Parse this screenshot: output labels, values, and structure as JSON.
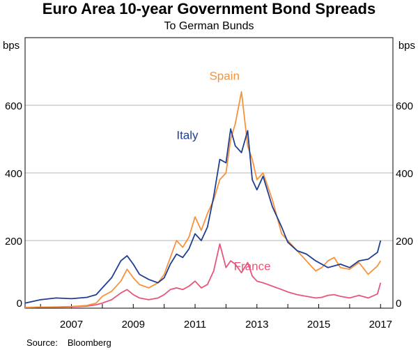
{
  "header": {
    "title": "Euro Area 10-year Government Bond Spreads",
    "subtitle": "To German Bunds"
  },
  "footer": {
    "source_label": "Source:",
    "source_value": "Bloomberg"
  },
  "chart_data": {
    "type": "line",
    "title": "Euro Area 10-year Government Bond Spreads",
    "subtitle": "To German Bunds",
    "xlabel": "",
    "ylabel_left": "bps",
    "ylabel_right": "bps",
    "xlim": [
      2005.5,
      2017.4
    ],
    "ylim": [
      0,
      800
    ],
    "x_ticks": [
      2007,
      2009,
      2011,
      2013,
      2015,
      2017
    ],
    "y_ticks": [
      0,
      200,
      400,
      600
    ],
    "grid": "horizontal",
    "colors": {
      "Spain": "#f7923a",
      "Italy": "#1f3e93",
      "France": "#e8557a"
    },
    "series": [
      {
        "name": "Spain",
        "x": [
          2005.5,
          2006.0,
          2006.5,
          2007.0,
          2007.5,
          2007.8,
          2008.0,
          2008.3,
          2008.6,
          2008.8,
          2009.0,
          2009.2,
          2009.5,
          2009.8,
          2010.0,
          2010.2,
          2010.4,
          2010.6,
          2010.8,
          2011.0,
          2011.2,
          2011.4,
          2011.6,
          2011.8,
          2012.0,
          2012.15,
          2012.3,
          2012.5,
          2012.7,
          2012.85,
          2013.0,
          2013.2,
          2013.5,
          2013.8,
          2014.0,
          2014.3,
          2014.6,
          2014.9,
          2015.1,
          2015.3,
          2015.5,
          2015.7,
          2016.0,
          2016.3,
          2016.6,
          2016.9,
          2017.0
        ],
        "values": [
          2,
          3,
          4,
          5,
          8,
          15,
          35,
          50,
          80,
          115,
          90,
          70,
          60,
          75,
          100,
          150,
          200,
          180,
          210,
          270,
          230,
          280,
          320,
          380,
          400,
          500,
          545,
          640,
          480,
          440,
          380,
          400,
          320,
          220,
          200,
          170,
          140,
          110,
          120,
          140,
          150,
          120,
          115,
          135,
          100,
          125,
          140
        ]
      },
      {
        "name": "Italy",
        "x": [
          2005.5,
          2006.0,
          2006.5,
          2007.0,
          2007.5,
          2007.8,
          2008.0,
          2008.3,
          2008.6,
          2008.8,
          2009.0,
          2009.2,
          2009.5,
          2009.8,
          2010.0,
          2010.2,
          2010.4,
          2010.6,
          2010.8,
          2011.0,
          2011.2,
          2011.4,
          2011.6,
          2011.8,
          2012.0,
          2012.15,
          2012.3,
          2012.5,
          2012.7,
          2012.85,
          2013.0,
          2013.2,
          2013.5,
          2013.8,
          2014.0,
          2014.3,
          2014.6,
          2014.9,
          2015.1,
          2015.3,
          2015.5,
          2015.7,
          2016.0,
          2016.3,
          2016.6,
          2016.9,
          2017.0
        ],
        "values": [
          15,
          25,
          30,
          28,
          32,
          40,
          60,
          90,
          140,
          155,
          130,
          100,
          85,
          75,
          90,
          130,
          160,
          150,
          175,
          220,
          200,
          240,
          330,
          440,
          430,
          530,
          480,
          460,
          525,
          380,
          350,
          390,
          300,
          240,
          195,
          170,
          160,
          140,
          130,
          120,
          125,
          130,
          120,
          140,
          145,
          165,
          200
        ]
      },
      {
        "name": "France",
        "x": [
          2005.5,
          2006.0,
          2006.5,
          2007.0,
          2007.5,
          2007.8,
          2008.0,
          2008.3,
          2008.6,
          2008.8,
          2009.0,
          2009.2,
          2009.5,
          2009.8,
          2010.0,
          2010.2,
          2010.4,
          2010.6,
          2010.8,
          2011.0,
          2011.2,
          2011.4,
          2011.6,
          2011.8,
          2012.0,
          2012.15,
          2012.3,
          2012.5,
          2012.7,
          2012.85,
          2013.0,
          2013.2,
          2013.5,
          2013.8,
          2014.0,
          2014.3,
          2014.6,
          2014.9,
          2015.1,
          2015.3,
          2015.5,
          2015.7,
          2016.0,
          2016.3,
          2016.6,
          2016.9,
          2017.0
        ],
        "values": [
          2,
          3,
          3,
          4,
          6,
          10,
          15,
          25,
          45,
          55,
          40,
          30,
          25,
          30,
          40,
          55,
          60,
          55,
          65,
          80,
          60,
          70,
          110,
          190,
          120,
          140,
          130,
          105,
          135,
          95,
          80,
          75,
          65,
          55,
          48,
          40,
          35,
          30,
          32,
          38,
          40,
          35,
          30,
          38,
          30,
          42,
          75
        ]
      }
    ],
    "annotations": [
      {
        "text": "Spain",
        "series": "Spain",
        "x": 2011.95,
        "y": 675
      },
      {
        "text": "Italy",
        "series": "Italy",
        "x": 2010.75,
        "y": 500
      },
      {
        "text": "France",
        "series": "France",
        "x": 2012.85,
        "y": 112
      }
    ]
  }
}
